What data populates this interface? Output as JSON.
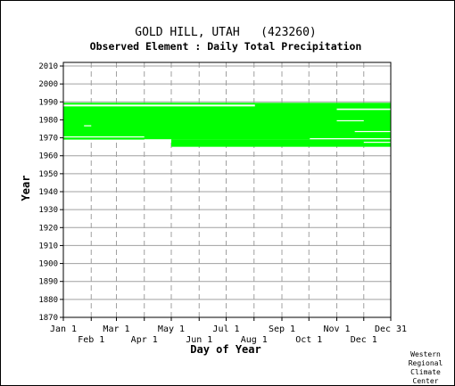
{
  "chart_data": {
    "type": "bar",
    "title": "GOLD HILL, UTAH   (423260)",
    "subtitle": "Observed Element : Daily Total Precipitation",
    "xlabel": "Day of Year",
    "ylabel": "Year",
    "xlim": [
      1,
      365
    ],
    "ylim": [
      1870,
      2012
    ],
    "grid": true,
    "series_color": "#00ff00",
    "y_ticks": [
      1870,
      1880,
      1890,
      1900,
      1910,
      1920,
      1930,
      1940,
      1950,
      1960,
      1970,
      1980,
      1990,
      2000,
      2010
    ],
    "x_ticks_top": [
      {
        "label": "Jan 1",
        "day": 1
      },
      {
        "label": "Mar 1",
        "day": 60
      },
      {
        "label": "May 1",
        "day": 121
      },
      {
        "label": "Jul 1",
        "day": 182
      },
      {
        "label": "Sep 1",
        "day": 244
      },
      {
        "label": "Nov 1",
        "day": 305
      },
      {
        "label": "Dec 31",
        "day": 365
      }
    ],
    "x_ticks_bottom": [
      {
        "label": "Feb 1",
        "day": 32
      },
      {
        "label": "Apr 1",
        "day": 91
      },
      {
        "label": "Jun 1",
        "day": 152
      },
      {
        "label": "Aug 1",
        "day": 213
      },
      {
        "label": "Oct 1",
        "day": 274
      },
      {
        "label": "Dec 1",
        "day": 335
      }
    ],
    "coverage": [
      {
        "day_start": 1,
        "day_end": 365,
        "year_start": 1969,
        "year_end": 1989.5
      },
      {
        "day_start": 121,
        "day_end": 365,
        "year_start": 1965,
        "year_end": 1969
      }
    ],
    "gaps": [
      {
        "day_start": 1,
        "day_end": 214,
        "year_start": 1987.5,
        "year_end": 1988.5
      },
      {
        "day_start": 305,
        "day_end": 365,
        "year_start": 1985.5,
        "year_end": 1986.3
      },
      {
        "day_start": 305,
        "day_end": 335,
        "year_start": 1979.2,
        "year_end": 1979.8
      },
      {
        "day_start": 325,
        "day_end": 365,
        "year_start": 1973.2,
        "year_end": 1973.8
      },
      {
        "day_start": 1,
        "day_end": 91,
        "year_start": 1970.2,
        "year_end": 1970.8
      },
      {
        "day_start": 275,
        "day_end": 365,
        "year_start": 1969.2,
        "year_end": 1969.8
      },
      {
        "day_start": 335,
        "day_end": 365,
        "year_start": 1967.2,
        "year_end": 1967.8
      },
      {
        "day_start": 91,
        "day_end": 121,
        "year_start": 1968.6,
        "year_end": 1969.2
      },
      {
        "day_start": 24,
        "day_end": 32,
        "year_start": 1976.4,
        "year_end": 1977.0
      }
    ],
    "credit": [
      "Western",
      "Regional",
      "Climate",
      "Center"
    ]
  }
}
